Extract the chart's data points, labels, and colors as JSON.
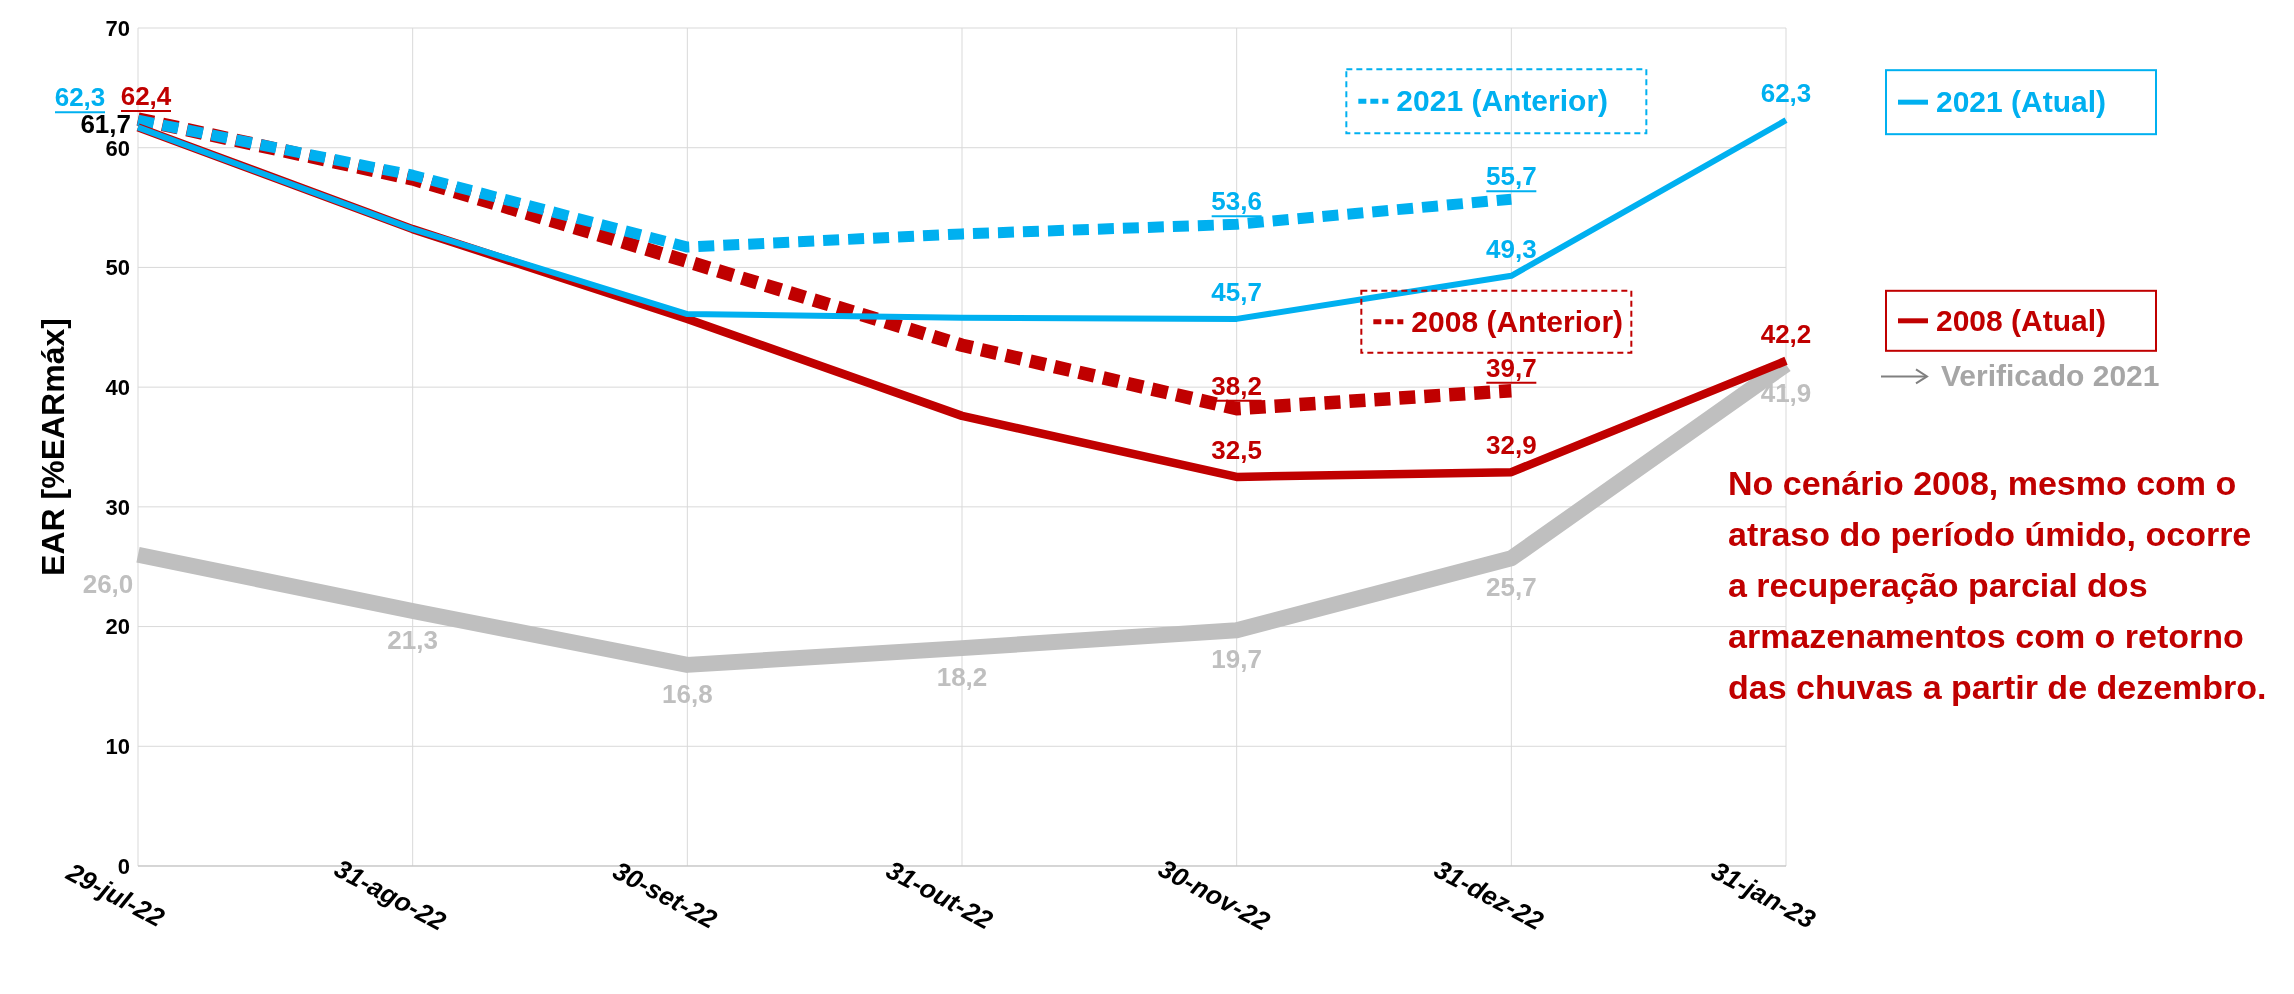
{
  "chart_data": {
    "type": "line",
    "ylabel": "EAR [%EARmáx]",
    "categories": [
      "29-jul-22",
      "31-ago-22",
      "30-set-22",
      "31-out-22",
      "30-nov-22",
      "31-dez-22",
      "31-jan-23"
    ],
    "legend": "right",
    "ylim": [
      0,
      70
    ],
    "yticks": [
      0,
      10,
      20,
      30,
      40,
      50,
      60,
      70
    ],
    "grid": true,
    "series": [
      {
        "name": "Verificado 2021",
        "color": "#bfbfbf",
        "line_style": "solid",
        "values": [
          26.0,
          21.3,
          16.8,
          18.2,
          19.7,
          25.7,
          41.9
        ],
        "value_labels": [
          "26,0",
          "21,3",
          "16,8",
          "18,2",
          "19,7",
          "25,7",
          "41,9"
        ]
      },
      {
        "name": "2008 (Anterior)",
        "color": "#c00000",
        "line_style": "dashed",
        "values": [
          62.4,
          57.4,
          50.5,
          43.5,
          38.2,
          39.7,
          null
        ],
        "value_labels": [
          "62,4",
          null,
          null,
          null,
          "38,2",
          "39,7",
          null
        ]
      },
      {
        "name": "2021 (Anterior)",
        "color": "#00b0f0",
        "line_style": "dashed",
        "values": [
          62.3,
          57.7,
          51.7,
          52.8,
          53.6,
          55.7,
          null
        ],
        "value_labels": [
          "62,3",
          null,
          null,
          null,
          "53,6",
          "55,7",
          null
        ]
      },
      {
        "name": "2008 (Atual)",
        "color": "#c00000",
        "line_style": "solid",
        "values": [
          61.7,
          53.2,
          45.7,
          37.6,
          32.5,
          32.9,
          42.2
        ],
        "value_labels": [
          null,
          null,
          null,
          null,
          "32,5",
          "32,9",
          "42,2"
        ]
      },
      {
        "name": "2021 (Atual)",
        "color": "#00b0f0",
        "line_style": "solid",
        "values": [
          61.7,
          53.2,
          46.1,
          45.8,
          45.7,
          49.3,
          62.3
        ],
        "value_labels": [
          null,
          null,
          null,
          null,
          "45,7",
          "49,3",
          "62,3"
        ]
      }
    ],
    "annotations": [
      {
        "text": "61,7",
        "x": "29-jul-22",
        "y": 61.7
      },
      "No cenário 2008, mesmo com o atraso do período úmido, ocorre a recuperação parcial dos armazenamentos com o retorno das chuvas a partir de dezembro."
    ]
  }
}
